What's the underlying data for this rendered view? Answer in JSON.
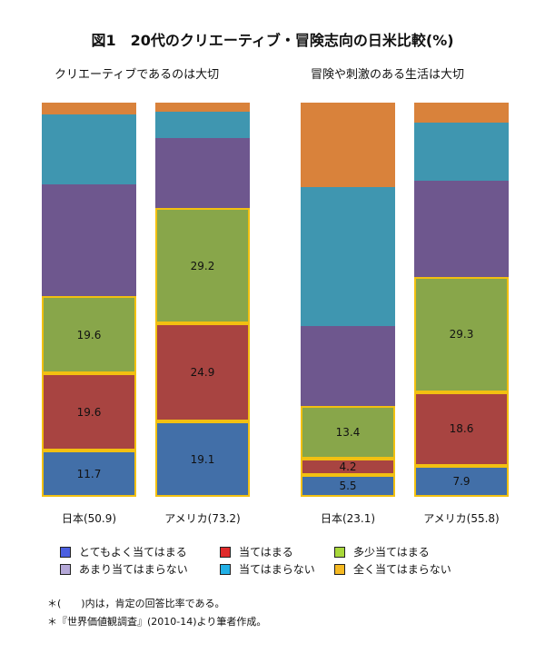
{
  "title": "図1　20代のクリエーティブ・冒険志向の日米比較(%)",
  "panels": [
    {
      "title": "クリエーティブであるのは大切"
    },
    {
      "title": "冒険や刺激のある生活は大切"
    }
  ],
  "bars": [
    {
      "label": "日本(50.9)"
    },
    {
      "label": "アメリカ(73.2)"
    },
    {
      "label": "日本(23.1)"
    },
    {
      "label": "アメリカ(55.8)"
    }
  ],
  "legend": [
    {
      "label": "とてもよく当てはまる",
      "color": "#4b5fe0"
    },
    {
      "label": "当てはまる",
      "color": "#e02a2a"
    },
    {
      "label": "多少当てはまる",
      "color": "#a8d83a"
    },
    {
      "label": "あまり当てはまらない",
      "color": "#b5a8d8"
    },
    {
      "label": "当てはまらない",
      "color": "#22b0e6"
    },
    {
      "label": "全く当てはまらない",
      "color": "#f5b922"
    }
  ],
  "notes": [
    "＊(　　)内は，肯定の回答比率である。",
    "＊『世界価値観調査』(2010-14)より筆者作成。"
  ],
  "chart_data": {
    "type": "bar",
    "stacked": true,
    "title": "図1　20代のクリエーティブ・冒険志向の日米比較(%)",
    "panels": [
      "クリエーティブであるのは大切",
      "冒険や刺激のある生活は大切"
    ],
    "categories": [
      "日本(50.9)",
      "アメリカ(73.2)",
      "日本(23.1)",
      "アメリカ(55.8)"
    ],
    "ylim": [
      0,
      100
    ],
    "series": [
      {
        "name": "とてもよく当てはまる",
        "color": "#426fa8",
        "values": [
          11.7,
          19.1,
          5.5,
          7.9
        ],
        "labeled": true
      },
      {
        "name": "当てはまる",
        "color": "#a84441",
        "values": [
          19.6,
          24.9,
          4.2,
          18.6
        ],
        "labeled": true
      },
      {
        "name": "多少当てはまる",
        "color": "#88a64a",
        "values": [
          19.6,
          29.2,
          13.4,
          29.3
        ],
        "labeled": true
      },
      {
        "name": "あまり当てはまらない",
        "color": "#6e578e",
        "values": [
          28.3,
          17.9,
          20.3,
          24.3
        ],
        "labeled": false
      },
      {
        "name": "当てはまらない",
        "color": "#3f96b0",
        "values": [
          17.7,
          6.5,
          35.3,
          14.8
        ],
        "labeled": false
      },
      {
        "name": "全く当てはまらない",
        "color": "#d9823b",
        "values": [
          3.1,
          2.4,
          21.3,
          5.1
        ],
        "labeled": false
      }
    ]
  }
}
